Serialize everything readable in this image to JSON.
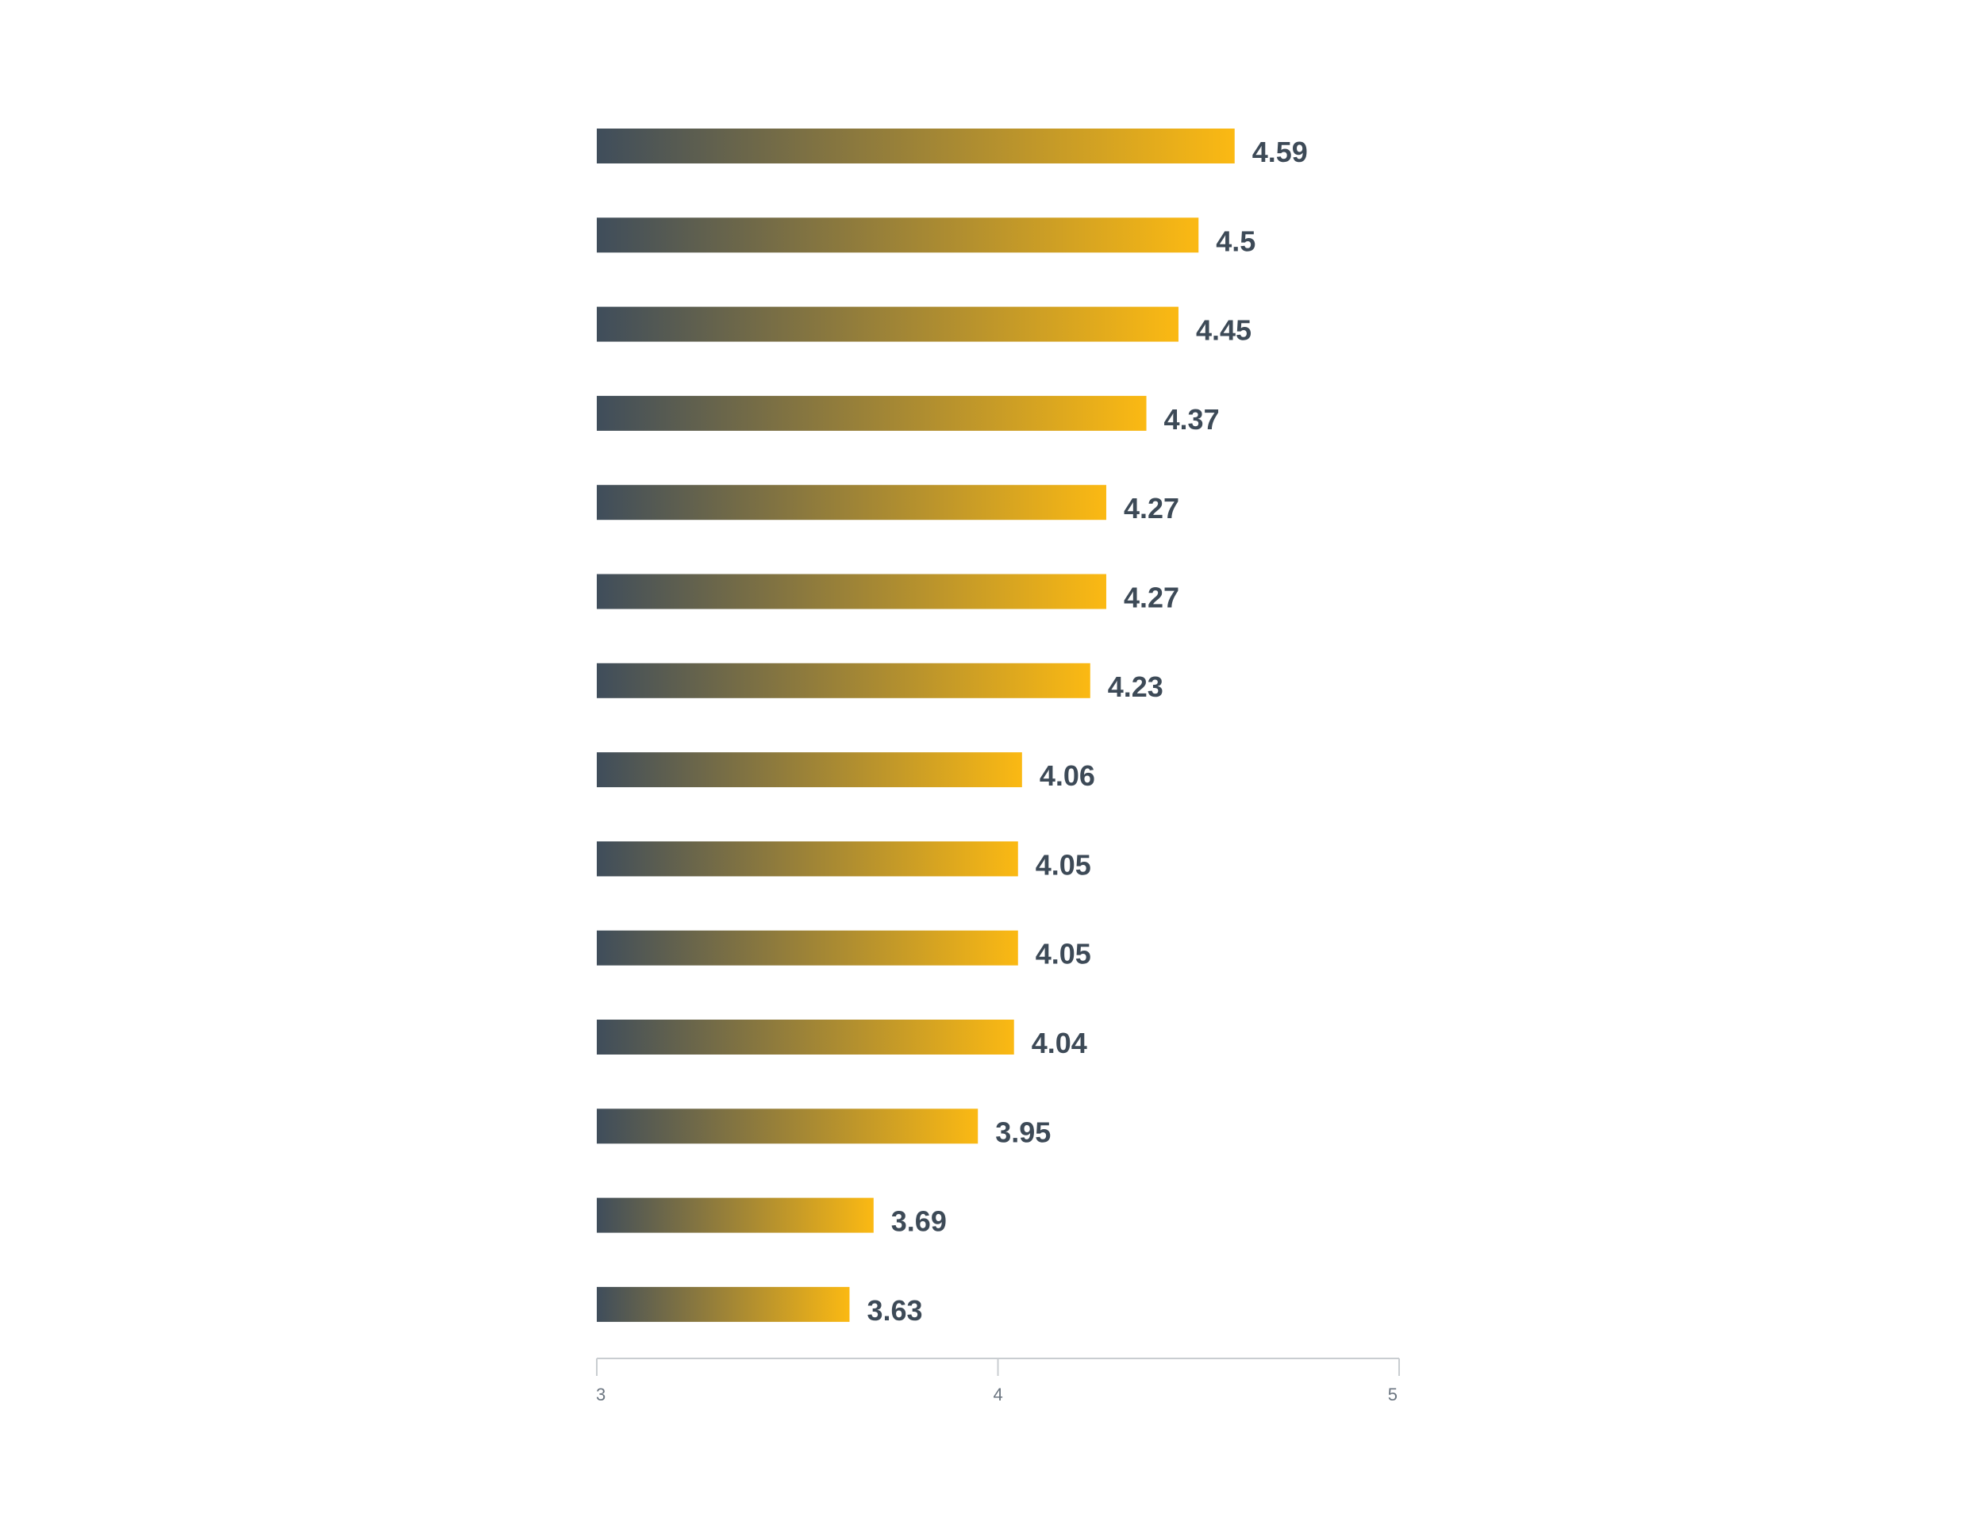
{
  "chart_data": {
    "type": "bar",
    "orientation": "horizontal",
    "title": "",
    "xlabel": "",
    "ylabel": "",
    "xlim": [
      3,
      5
    ],
    "ticks": [
      "3",
      "4",
      "5"
    ],
    "tick_values": [
      3,
      4,
      5
    ],
    "grid": false,
    "legend": "none",
    "values": [
      4.59,
      4.5,
      4.45,
      4.37,
      4.27,
      4.27,
      4.23,
      4.06,
      4.05,
      4.05,
      4.04,
      3.95,
      3.69,
      3.63
    ],
    "value_labels": [
      "4.59",
      "4.5",
      "4.45",
      "4.37",
      "4.27",
      "4.27",
      "4.23",
      "4.06",
      "4.05",
      "4.05",
      "4.04",
      "3.95",
      "3.69",
      "3.63"
    ]
  },
  "colors": {
    "gradient_start": "#3f4d5b",
    "gradient_end": "#fbb913",
    "label": "#3d4a57",
    "tick_text": "#6b7580",
    "axis": "#c9cdd1"
  }
}
